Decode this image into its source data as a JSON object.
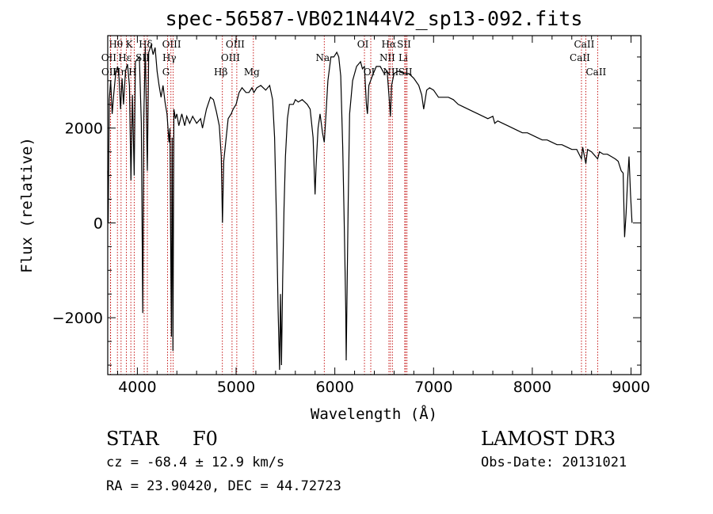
{
  "chart_data": {
    "type": "line",
    "title": "spec-56587-VB021N44V2_sp13-092.fits",
    "xlabel": "Wavelength (Å)",
    "ylabel": "Flux (relative)",
    "xlim": [
      3700,
      9100
    ],
    "ylim": [
      -3200,
      3950
    ],
    "x_ticks": [
      4000,
      5000,
      6000,
      7000,
      8000,
      9000
    ],
    "y_ticks": [
      -2000,
      0,
      2000
    ],
    "grid": false,
    "series": [
      {
        "values": [
          [
            3700,
            1100
          ],
          [
            3705,
            0
          ],
          [
            3715,
            2600
          ],
          [
            3730,
            3000
          ],
          [
            3745,
            2300
          ],
          [
            3760,
            2700
          ],
          [
            3780,
            3150
          ],
          [
            3800,
            3300
          ],
          [
            3815,
            3050
          ],
          [
            3830,
            2400
          ],
          [
            3845,
            3050
          ],
          [
            3860,
            2500
          ],
          [
            3880,
            3200
          ],
          [
            3900,
            3350
          ],
          [
            3920,
            2900
          ],
          [
            3935,
            900
          ],
          [
            3950,
            2700
          ],
          [
            3968,
            1000
          ],
          [
            3980,
            3400
          ],
          [
            4000,
            3450
          ],
          [
            4020,
            3500
          ],
          [
            4040,
            2100
          ],
          [
            4055,
            -1900
          ],
          [
            4065,
            2200
          ],
          [
            4080,
            3700
          ],
          [
            4101,
            1100
          ],
          [
            4115,
            3600
          ],
          [
            4140,
            3750
          ],
          [
            4160,
            3550
          ],
          [
            4180,
            3700
          ],
          [
            4200,
            3200
          ],
          [
            4220,
            2900
          ],
          [
            4240,
            2650
          ],
          [
            4260,
            2900
          ],
          [
            4280,
            2550
          ],
          [
            4300,
            2300
          ],
          [
            4320,
            1700
          ],
          [
            4330,
            2000
          ],
          [
            4340,
            -1200
          ],
          [
            4345,
            -2400
          ],
          [
            4352,
            1800
          ],
          [
            4360,
            -2700
          ],
          [
            4370,
            2400
          ],
          [
            4385,
            2200
          ],
          [
            4400,
            2300
          ],
          [
            4420,
            2050
          ],
          [
            4450,
            2300
          ],
          [
            4480,
            2050
          ],
          [
            4500,
            2250
          ],
          [
            4530,
            2100
          ],
          [
            4560,
            2250
          ],
          [
            4600,
            2100
          ],
          [
            4640,
            2200
          ],
          [
            4660,
            2000
          ],
          [
            4700,
            2400
          ],
          [
            4740,
            2650
          ],
          [
            4770,
            2600
          ],
          [
            4800,
            2350
          ],
          [
            4830,
            2050
          ],
          [
            4850,
            1400
          ],
          [
            4862,
            0
          ],
          [
            4875,
            1300
          ],
          [
            4895,
            1700
          ],
          [
            4920,
            2200
          ],
          [
            4950,
            2300
          ],
          [
            4970,
            2400
          ],
          [
            5000,
            2500
          ],
          [
            5030,
            2750
          ],
          [
            5060,
            2850
          ],
          [
            5100,
            2750
          ],
          [
            5130,
            2750
          ],
          [
            5160,
            2850
          ],
          [
            5180,
            2750
          ],
          [
            5210,
            2850
          ],
          [
            5250,
            2900
          ],
          [
            5300,
            2800
          ],
          [
            5340,
            2900
          ],
          [
            5370,
            2600
          ],
          [
            5390,
            1800
          ],
          [
            5410,
            0
          ],
          [
            5425,
            -1800
          ],
          [
            5440,
            -3100
          ],
          [
            5450,
            -1500
          ],
          [
            5460,
            -3000
          ],
          [
            5472,
            -1200
          ],
          [
            5485,
            300
          ],
          [
            5500,
            1400
          ],
          [
            5520,
            2200
          ],
          [
            5540,
            2500
          ],
          [
            5580,
            2500
          ],
          [
            5600,
            2600
          ],
          [
            5630,
            2550
          ],
          [
            5670,
            2600
          ],
          [
            5720,
            2500
          ],
          [
            5750,
            2400
          ],
          [
            5780,
            1800
          ],
          [
            5800,
            600
          ],
          [
            5810,
            1200
          ],
          [
            5830,
            2000
          ],
          [
            5850,
            2300
          ],
          [
            5875,
            1900
          ],
          [
            5893,
            1700
          ],
          [
            5905,
            2100
          ],
          [
            5930,
            3000
          ],
          [
            5960,
            3500
          ],
          [
            5990,
            3500
          ],
          [
            6020,
            3600
          ],
          [
            6040,
            3500
          ],
          [
            6060,
            3100
          ],
          [
            6080,
            1600
          ],
          [
            6095,
            0
          ],
          [
            6110,
            -1800
          ],
          [
            6115,
            -2900
          ],
          [
            6125,
            -1300
          ],
          [
            6135,
            400
          ],
          [
            6150,
            2300
          ],
          [
            6180,
            3000
          ],
          [
            6220,
            3300
          ],
          [
            6260,
            3400
          ],
          [
            6280,
            3250
          ],
          [
            6300,
            3300
          ],
          [
            6320,
            2500
          ],
          [
            6330,
            2300
          ],
          [
            6345,
            2900
          ],
          [
            6380,
            3100
          ],
          [
            6420,
            3300
          ],
          [
            6460,
            3300
          ],
          [
            6500,
            3150
          ],
          [
            6530,
            3200
          ],
          [
            6555,
            2500
          ],
          [
            6563,
            2250
          ],
          [
            6575,
            2900
          ],
          [
            6600,
            3150
          ],
          [
            6640,
            3200
          ],
          [
            6700,
            3150
          ],
          [
            6750,
            3150
          ],
          [
            6800,
            3050
          ],
          [
            6850,
            2900
          ],
          [
            6880,
            2700
          ],
          [
            6900,
            2400
          ],
          [
            6930,
            2800
          ],
          [
            6960,
            2850
          ],
          [
            7000,
            2800
          ],
          [
            7050,
            2650
          ],
          [
            7100,
            2650
          ],
          [
            7150,
            2650
          ],
          [
            7200,
            2600
          ],
          [
            7250,
            2500
          ],
          [
            7300,
            2450
          ],
          [
            7350,
            2400
          ],
          [
            7400,
            2350
          ],
          [
            7450,
            2300
          ],
          [
            7500,
            2250
          ],
          [
            7550,
            2200
          ],
          [
            7600,
            2250
          ],
          [
            7620,
            2100
          ],
          [
            7650,
            2150
          ],
          [
            7700,
            2100
          ],
          [
            7750,
            2050
          ],
          [
            7800,
            2000
          ],
          [
            7850,
            1950
          ],
          [
            7900,
            1900
          ],
          [
            7950,
            1900
          ],
          [
            8000,
            1850
          ],
          [
            8050,
            1800
          ],
          [
            8100,
            1750
          ],
          [
            8150,
            1750
          ],
          [
            8200,
            1700
          ],
          [
            8250,
            1650
          ],
          [
            8300,
            1650
          ],
          [
            8350,
            1600
          ],
          [
            8400,
            1550
          ],
          [
            8450,
            1550
          ],
          [
            8498,
            1350
          ],
          [
            8510,
            1600
          ],
          [
            8542,
            1250
          ],
          [
            8560,
            1550
          ],
          [
            8600,
            1500
          ],
          [
            8662,
            1350
          ],
          [
            8680,
            1500
          ],
          [
            8720,
            1450
          ],
          [
            8760,
            1450
          ],
          [
            8800,
            1400
          ],
          [
            8840,
            1350
          ],
          [
            8870,
            1300
          ],
          [
            8900,
            1100
          ],
          [
            8920,
            1050
          ],
          [
            8935,
            -300
          ],
          [
            8950,
            200
          ],
          [
            8965,
            900
          ],
          [
            8980,
            1400
          ],
          [
            8995,
            600
          ],
          [
            9010,
            0
          ]
        ]
      }
    ],
    "line_markers": [
      {
        "label": "Hθ",
        "x": 3798,
        "row": 1
      },
      {
        "label": "OII",
        "x": 3727,
        "row": 2
      },
      {
        "label": "OII",
        "x": 3729,
        "row": 3
      },
      {
        "label": "Hη",
        "x": 3835,
        "row": 3
      },
      {
        "label": "Hε",
        "x": 3889,
        "row": 2
      },
      {
        "label": "K",
        "x": 3934,
        "row": 1
      },
      {
        "label": "H",
        "x": 3968,
        "row": 3
      },
      {
        "label": "Hδ",
        "x": 4101,
        "row": 1
      },
      {
        "label": "SII",
        "x": 4069,
        "row": 2
      },
      {
        "label": "OIII",
        "x": 4363,
        "row": 1
      },
      {
        "label": "Hγ",
        "x": 4340,
        "row": 2
      },
      {
        "label": "G",
        "x": 4306,
        "row": 3
      },
      {
        "label": "Hβ",
        "x": 4861,
        "row": 3
      },
      {
        "label": "OIII",
        "x": 5007,
        "row": 1
      },
      {
        "label": "OIII",
        "x": 4959,
        "row": 2
      },
      {
        "label": "Mg",
        "x": 5175,
        "row": 3
      },
      {
        "label": "Na",
        "x": 5893,
        "row": 2
      },
      {
        "label": "OI",
        "x": 6300,
        "row": 1
      },
      {
        "label": "OI",
        "x": 6364,
        "row": 3
      },
      {
        "label": "Hα",
        "x": 6563,
        "row": 1
      },
      {
        "label": "NII",
        "x": 6548,
        "row": 2
      },
      {
        "label": "NII",
        "x": 6583,
        "row": 3
      },
      {
        "label": "SII",
        "x": 6717,
        "row": 1
      },
      {
        "label": "Li",
        "x": 6708,
        "row": 2
      },
      {
        "label": "SII",
        "x": 6731,
        "row": 3
      },
      {
        "label": "CaII",
        "x": 8542,
        "row": 1
      },
      {
        "label": "CaII",
        "x": 8498,
        "row": 2
      },
      {
        "label": "CaII",
        "x": 8662,
        "row": 3
      }
    ]
  },
  "info": {
    "object_type": "STAR",
    "subclass": "F0",
    "survey": "LAMOST DR3",
    "cz": "cz = -68.4 ± 12.9 km/s",
    "obs_date": "Obs-Date: 20131021",
    "coords": "RA =  23.90420, DEC =  44.72723"
  }
}
